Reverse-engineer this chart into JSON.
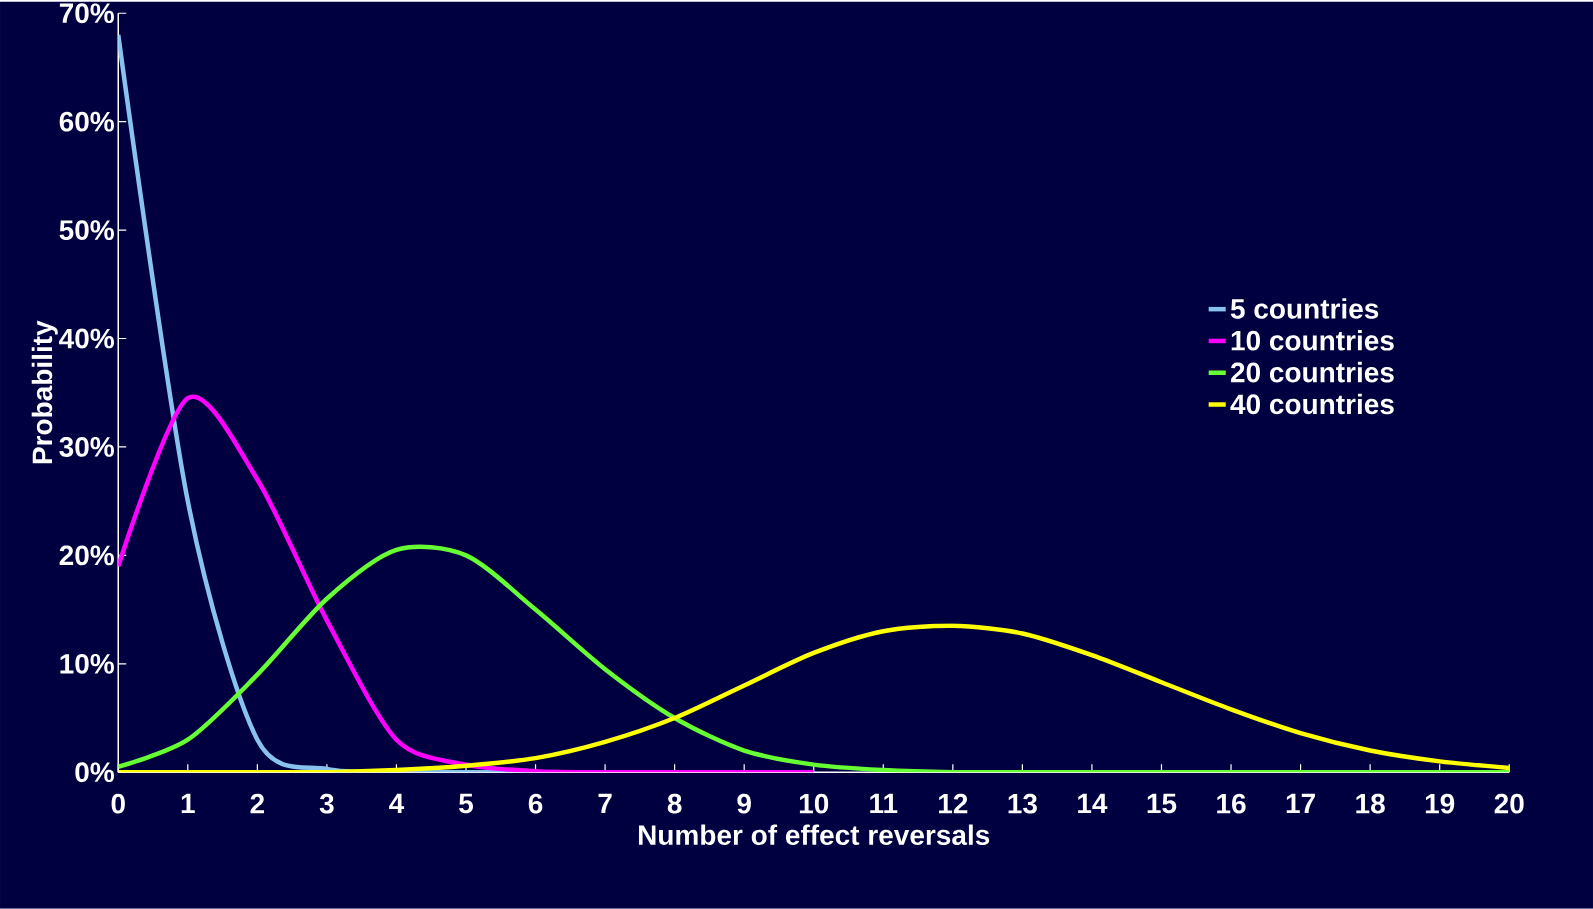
{
  "chart_data": {
    "type": "line",
    "xlabel": "Number of effect reversals",
    "ylabel": "Probability",
    "x": [
      0,
      1,
      2,
      3,
      4,
      5,
      6,
      7,
      8,
      9,
      10,
      11,
      12,
      13,
      14,
      15,
      16,
      17,
      18,
      19,
      20
    ],
    "xlim": [
      0,
      20
    ],
    "xticks": [
      0,
      1,
      2,
      3,
      4,
      5,
      6,
      7,
      8,
      9,
      10,
      11,
      12,
      13,
      14,
      15,
      16,
      17,
      18,
      19,
      20
    ],
    "ylim": [
      0,
      70
    ],
    "yticks": [
      {
        "value": 0,
        "label": "0%"
      },
      {
        "value": 10,
        "label": "10%"
      },
      {
        "value": 20,
        "label": "20%"
      },
      {
        "value": 30,
        "label": "30%"
      },
      {
        "value": 40,
        "label": "40%"
      },
      {
        "value": 50,
        "label": "50%"
      },
      {
        "value": 60,
        "label": "60%"
      },
      {
        "value": 70,
        "label": "70%"
      }
    ],
    "legend": "right",
    "marker": "none",
    "line_style": "solid",
    "series": [
      {
        "name": "5 countries",
        "color": "#87c3ee",
        "values": [
          68,
          25,
          3,
          0.3,
          0,
          0,
          0,
          null,
          null,
          null,
          null,
          null,
          null,
          null,
          null,
          null,
          null,
          null,
          null,
          null,
          null
        ]
      },
      {
        "name": "10 countries",
        "color": "#ff00ff",
        "values": [
          19,
          34.5,
          27,
          14,
          3,
          0.7,
          0.1,
          0,
          0,
          0,
          0,
          null,
          null,
          null,
          null,
          null,
          null,
          null,
          null,
          null,
          null
        ]
      },
      {
        "name": "20 countries",
        "color": "#66ff33",
        "values": [
          0.5,
          3,
          9,
          16,
          20.5,
          20,
          15,
          9.5,
          5,
          2,
          0.7,
          0.2,
          0,
          0,
          0,
          0,
          0,
          0,
          0,
          0,
          0
        ]
      },
      {
        "name": "40 countries",
        "color": "#ffff00",
        "values": [
          0,
          0,
          0,
          0,
          0.2,
          0.6,
          1.3,
          2.8,
          5,
          8,
          11,
          13,
          13.5,
          12.8,
          10.8,
          8.3,
          5.8,
          3.6,
          2,
          1,
          0.4
        ]
      }
    ]
  }
}
